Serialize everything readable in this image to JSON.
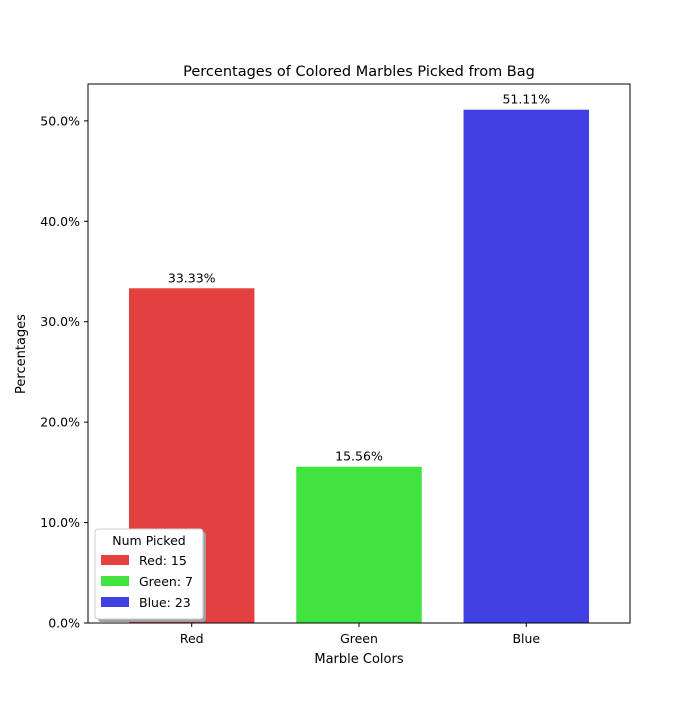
{
  "chart_data": {
    "type": "bar",
    "title": "Percentages of Colored Marbles Picked from Bag",
    "xlabel": "Marble Colors",
    "ylabel": "Percentages",
    "categories": [
      "Red",
      "Green",
      "Blue"
    ],
    "values": [
      33.33,
      15.56,
      51.11
    ],
    "data_labels": [
      "33.33%",
      "15.56%",
      "51.11%"
    ],
    "colors": [
      "#e34040",
      "#40e340",
      "#4040e3"
    ],
    "ylim": [
      0,
      53.67
    ],
    "yticks": [
      {
        "value": 0,
        "label": "0.0%"
      },
      {
        "value": 10,
        "label": "10.0%"
      },
      {
        "value": 20,
        "label": "20.0%"
      },
      {
        "value": 30,
        "label": "30.0%"
      },
      {
        "value": 40,
        "label": "40.0%"
      },
      {
        "value": 50,
        "label": "50.0%"
      }
    ],
    "grid": false,
    "legend": {
      "title": "Num Picked",
      "placement": "lower-left",
      "entries": [
        "Red: 15",
        "Green: 7",
        "Blue: 23"
      ]
    }
  }
}
